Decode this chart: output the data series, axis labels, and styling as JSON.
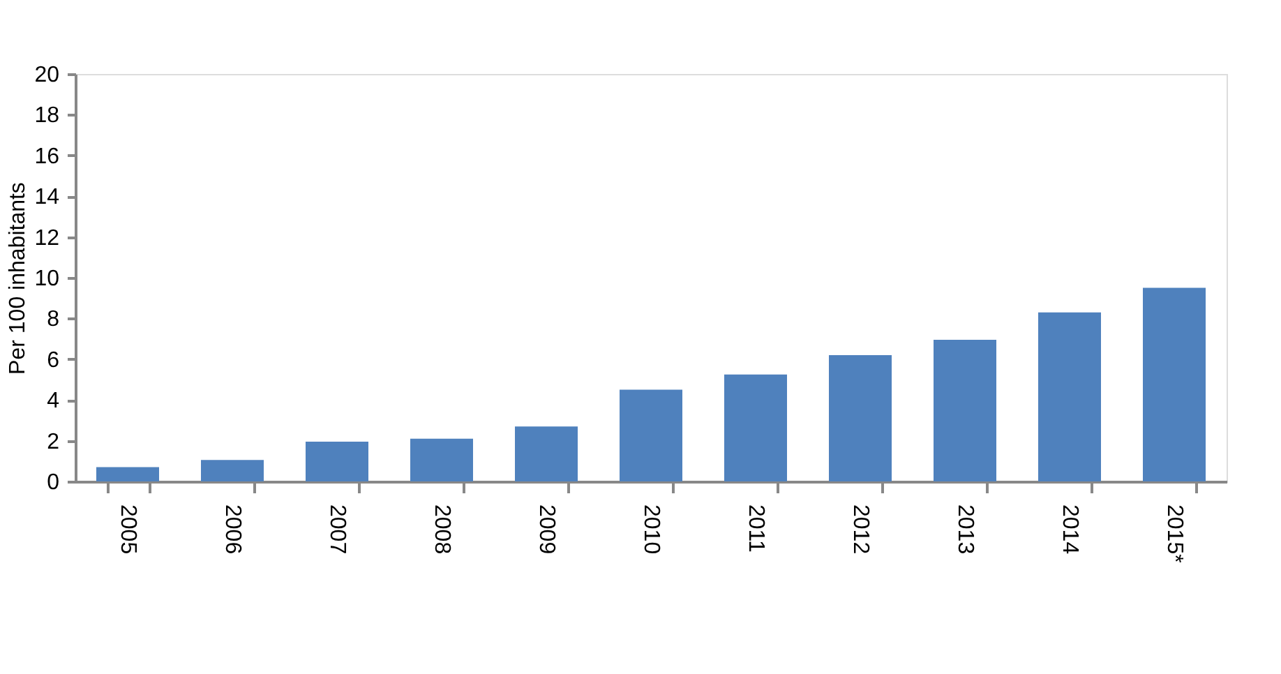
{
  "chart_data": {
    "type": "bar",
    "ylabel": "Per 100 inhabitants",
    "categories": [
      "2005",
      "2006",
      "2007",
      "2008",
      "2009",
      "2010",
      "2011",
      "2012",
      "2013",
      "2014",
      "2015*"
    ],
    "values": [
      0.7,
      1.05,
      1.95,
      2.1,
      2.7,
      4.5,
      5.25,
      6.2,
      6.95,
      8.3,
      9.5
    ],
    "color": "#4f81bd",
    "ylim": [
      0,
      20
    ],
    "yticks": [
      0,
      2,
      4,
      6,
      8,
      10,
      12,
      14,
      16,
      18,
      20
    ],
    "grid": false
  }
}
